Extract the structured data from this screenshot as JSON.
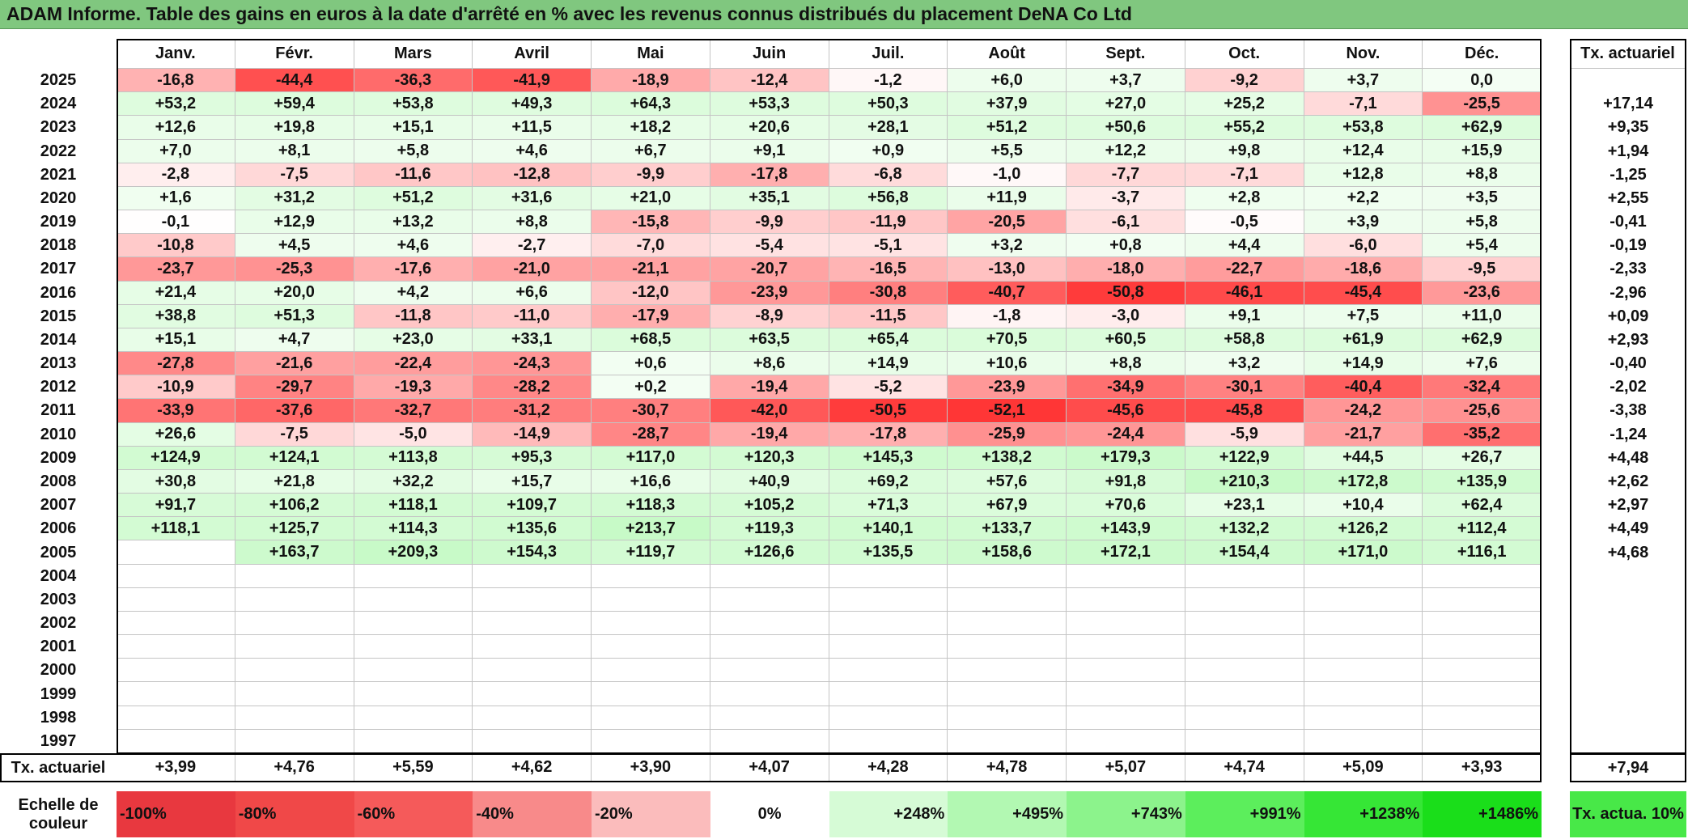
{
  "title": "ADAM Informe. Table des gains en euros à la date d'arrêté en % avec les revenus connus distribués du placement DeNA Co Ltd",
  "table": {
    "header": [
      "Janv.",
      "Févr.",
      "Mars",
      "Avril",
      "Mai",
      "Juin",
      "Juil.",
      "Août",
      "Sept.",
      "Oct.",
      "Nov.",
      "Déc."
    ],
    "rate_header": "Tx. actuariel",
    "rows": [
      {
        "year": 2025,
        "cells": [
          "-16,8",
          "-44,4",
          "-36,3",
          "-41,9",
          "-18,9",
          "-12,4",
          "-1,2",
          "+6,0",
          "+3,7",
          "-9,2",
          "+3,7",
          "0,0"
        ],
        "rate": null
      },
      {
        "year": 2024,
        "cells": [
          "+53,2",
          "+59,4",
          "+53,8",
          "+49,3",
          "+64,3",
          "+53,3",
          "+50,3",
          "+37,9",
          "+27,0",
          "+25,2",
          "-7,1",
          "-25,5"
        ],
        "rate": "+17,14"
      },
      {
        "year": 2023,
        "cells": [
          "+12,6",
          "+19,8",
          "+15,1",
          "+11,5",
          "+18,2",
          "+20,6",
          "+28,1",
          "+51,2",
          "+50,6",
          "+55,2",
          "+53,8",
          "+62,9"
        ],
        "rate": "+9,35"
      },
      {
        "year": 2022,
        "cells": [
          "+7,0",
          "+8,1",
          "+5,8",
          "+4,6",
          "+6,7",
          "+9,1",
          "+0,9",
          "+5,5",
          "+12,2",
          "+9,8",
          "+12,4",
          "+15,9"
        ],
        "rate": "+1,94"
      },
      {
        "year": 2021,
        "cells": [
          "-2,8",
          "-7,5",
          "-11,6",
          "-12,8",
          "-9,9",
          "-17,8",
          "-6,8",
          "-1,0",
          "-7,7",
          "-7,1",
          "+12,8",
          "+8,8"
        ],
        "rate": "-1,25"
      },
      {
        "year": 2020,
        "cells": [
          "+1,6",
          "+31,2",
          "+51,2",
          "+31,6",
          "+21,0",
          "+35,1",
          "+56,8",
          "+11,9",
          "-3,7",
          "+2,8",
          "+2,2",
          "+3,5"
        ],
        "rate": "+2,55"
      },
      {
        "year": 2019,
        "cells": [
          "-0,1",
          "+12,9",
          "+13,2",
          "+8,8",
          "-15,8",
          "-9,9",
          "-11,9",
          "-20,5",
          "-6,1",
          "-0,5",
          "+3,9",
          "+5,8"
        ],
        "rate": "-0,41"
      },
      {
        "year": 2018,
        "cells": [
          "-10,8",
          "+4,5",
          "+4,6",
          "-2,7",
          "-7,0",
          "-5,4",
          "-5,1",
          "+3,2",
          "+0,8",
          "+4,4",
          "-6,0",
          "+5,4"
        ],
        "rate": "-0,19"
      },
      {
        "year": 2017,
        "cells": [
          "-23,7",
          "-25,3",
          "-17,6",
          "-21,0",
          "-21,1",
          "-20,7",
          "-16,5",
          "-13,0",
          "-18,0",
          "-22,7",
          "-18,6",
          "-9,5"
        ],
        "rate": "-2,33"
      },
      {
        "year": 2016,
        "cells": [
          "+21,4",
          "+20,0",
          "+4,2",
          "+6,6",
          "-12,0",
          "-23,9",
          "-30,8",
          "-40,7",
          "-50,8",
          "-46,1",
          "-45,4",
          "-23,6"
        ],
        "rate": "-2,96"
      },
      {
        "year": 2015,
        "cells": [
          "+38,8",
          "+51,3",
          "-11,8",
          "-11,0",
          "-17,9",
          "-8,9",
          "-11,5",
          "-1,8",
          "-3,0",
          "+9,1",
          "+7,5",
          "+11,0"
        ],
        "rate": "+0,09"
      },
      {
        "year": 2014,
        "cells": [
          "+15,1",
          "+4,7",
          "+23,0",
          "+33,1",
          "+68,5",
          "+63,5",
          "+65,4",
          "+70,5",
          "+60,5",
          "+58,8",
          "+61,9",
          "+62,9"
        ],
        "rate": "+2,93"
      },
      {
        "year": 2013,
        "cells": [
          "-27,8",
          "-21,6",
          "-22,4",
          "-24,3",
          "+0,6",
          "+8,6",
          "+14,9",
          "+10,6",
          "+8,8",
          "+3,2",
          "+14,9",
          "+7,6"
        ],
        "rate": "-0,40"
      },
      {
        "year": 2012,
        "cells": [
          "-10,9",
          "-29,7",
          "-19,3",
          "-28,2",
          "+0,2",
          "-19,4",
          "-5,2",
          "-23,9",
          "-34,9",
          "-30,1",
          "-40,4",
          "-32,4"
        ],
        "rate": "-2,02"
      },
      {
        "year": 2011,
        "cells": [
          "-33,9",
          "-37,6",
          "-32,7",
          "-31,2",
          "-30,7",
          "-42,0",
          "-50,5",
          "-52,1",
          "-45,6",
          "-45,8",
          "-24,2",
          "-25,6"
        ],
        "rate": "-3,38"
      },
      {
        "year": 2010,
        "cells": [
          "+26,6",
          "-7,5",
          "-5,0",
          "-14,9",
          "-28,7",
          "-19,4",
          "-17,8",
          "-25,9",
          "-24,4",
          "-5,9",
          "-21,7",
          "-35,2"
        ],
        "rate": "-1,24"
      },
      {
        "year": 2009,
        "cells": [
          "+124,9",
          "+124,1",
          "+113,8",
          "+95,3",
          "+117,0",
          "+120,3",
          "+145,3",
          "+138,2",
          "+179,3",
          "+122,9",
          "+44,5",
          "+26,7"
        ],
        "rate": "+4,48"
      },
      {
        "year": 2008,
        "cells": [
          "+30,8",
          "+21,8",
          "+32,2",
          "+15,7",
          "+16,6",
          "+40,9",
          "+69,2",
          "+57,6",
          "+91,8",
          "+210,3",
          "+172,8",
          "+135,9"
        ],
        "rate": "+2,62"
      },
      {
        "year": 2007,
        "cells": [
          "+91,7",
          "+106,2",
          "+118,1",
          "+109,7",
          "+118,3",
          "+105,2",
          "+71,3",
          "+67,9",
          "+70,6",
          "+23,1",
          "+10,4",
          "+62,4"
        ],
        "rate": "+2,97"
      },
      {
        "year": 2006,
        "cells": [
          "+118,1",
          "+125,7",
          "+114,3",
          "+135,6",
          "+213,7",
          "+119,3",
          "+140,1",
          "+133,7",
          "+143,9",
          "+132,2",
          "+126,2",
          "+112,4"
        ],
        "rate": "+4,49"
      },
      {
        "year": 2005,
        "cells": [
          null,
          "+163,7",
          "+209,3",
          "+154,3",
          "+119,7",
          "+126,6",
          "+135,5",
          "+158,6",
          "+172,1",
          "+154,4",
          "+171,0",
          "+116,1"
        ],
        "rate": "+4,68"
      },
      {
        "year": 2004
      },
      {
        "year": 2003
      },
      {
        "year": 2002
      },
      {
        "year": 2001
      },
      {
        "year": 2000
      },
      {
        "year": 1999
      },
      {
        "year": 1998
      },
      {
        "year": 1997
      }
    ]
  },
  "footer": {
    "label": "Tx. actuariel",
    "cells": [
      "+3,99",
      "+4,76",
      "+5,59",
      "+4,62",
      "+3,90",
      "+4,07",
      "+4,28",
      "+4,78",
      "+5,07",
      "+4,74",
      "+5,09",
      "+3,93"
    ],
    "rate": "+7,94"
  },
  "scale": {
    "label": "Echelle de couleur",
    "steps": [
      "-100%",
      "-80%",
      "-60%",
      "-40%",
      "-20%",
      "0%",
      "+248%",
      "+495%",
      "+743%",
      "+991%",
      "+1238%",
      "+1486%"
    ],
    "rate_label": "Tx. actua. 10%"
  }
}
